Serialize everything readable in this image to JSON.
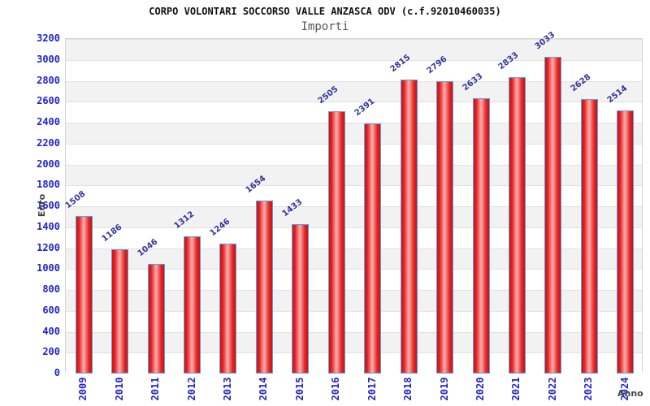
{
  "chart_data": {
    "type": "bar",
    "title": "CORPO VOLONTARI SOCCORSO VALLE ANZASCA ODV (c.f.92010460035)",
    "subtitle": "Importi",
    "xlabel": "Anno",
    "ylabel": "Euro",
    "categories": [
      "2009",
      "2010",
      "2011",
      "2012",
      "2013",
      "2014",
      "2015",
      "2016",
      "2017",
      "2018",
      "2019",
      "2020",
      "2021",
      "2022",
      "2023",
      "2024"
    ],
    "values": [
      1508,
      1186,
      1046,
      1312,
      1246,
      1654,
      1433,
      2505,
      2391,
      2815,
      2796,
      2633,
      2833,
      3033,
      2628,
      2514
    ],
    "ylim": [
      0,
      3200
    ],
    "ytick_step": 200,
    "grid": "horizontal",
    "legend_position": "none",
    "colors": {
      "bar_fill_edge": "#c81414",
      "bar_fill_highlight": "#ffafaf",
      "bar_border": "#5aa2e2",
      "tick_label": "#2222cc",
      "value_label": "#333399",
      "band_gray": "#f2f2f2",
      "band_white": "#ffffff",
      "title_color": "#111111",
      "subtitle_color": "#555555",
      "axis_title_color": "#444444"
    }
  }
}
